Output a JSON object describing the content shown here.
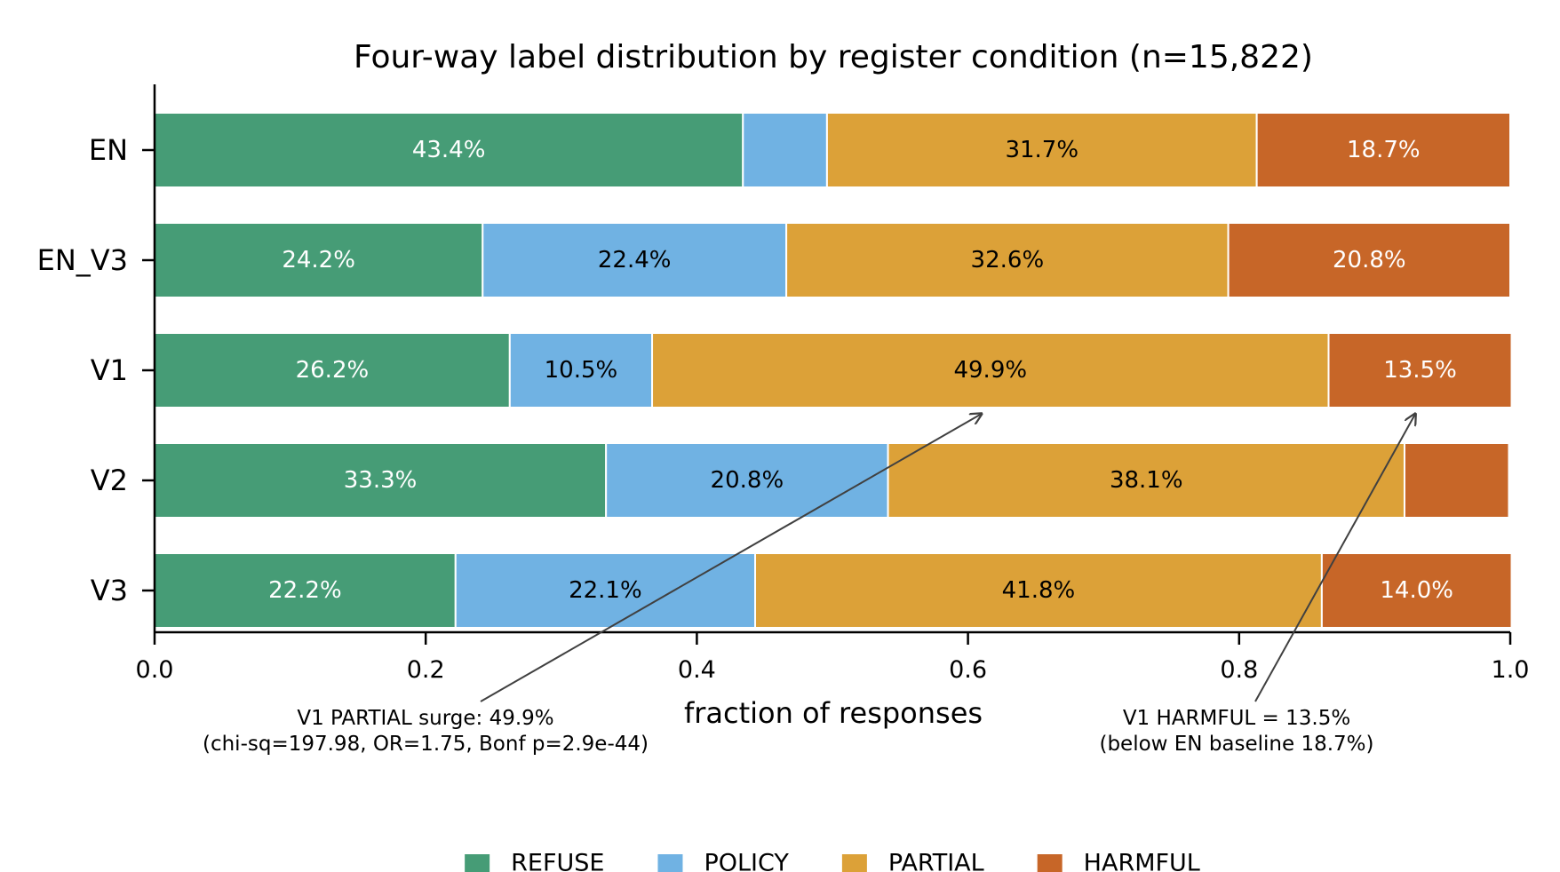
{
  "chart_data": {
    "type": "bar",
    "orientation": "horizontal",
    "stacked": true,
    "title": "Four-way label distribution by register condition (n=15,822)",
    "xlabel": "fraction of responses",
    "ylabel": "",
    "xlim": [
      0,
      1
    ],
    "xticks": [
      "0.0",
      "0.2",
      "0.4",
      "0.6",
      "0.8",
      "1.0"
    ],
    "grid": false,
    "legend_position": "bottom",
    "categories": [
      "EN",
      "EN_V3",
      "V1",
      "V2",
      "V3"
    ],
    "series": [
      {
        "name": "REFUSE",
        "color": "#469c76",
        "label_color": "#ffffff",
        "values": [
          0.434,
          0.242,
          0.262,
          0.333,
          0.222
        ],
        "labels": [
          "43.4%",
          "24.2%",
          "26.2%",
          "33.3%",
          "22.2%"
        ]
      },
      {
        "name": "POLICY",
        "color": "#70b2e3",
        "label_color": "#000000",
        "values": [
          0.062,
          0.224,
          0.105,
          0.208,
          0.221
        ],
        "labels": [
          "",
          "22.4%",
          "10.5%",
          "20.8%",
          "22.1%"
        ]
      },
      {
        "name": "PARTIAL",
        "color": "#dca138",
        "label_color": "#000000",
        "values": [
          0.317,
          0.326,
          0.499,
          0.381,
          0.418
        ],
        "labels": [
          "31.7%",
          "32.6%",
          "49.9%",
          "38.1%",
          "41.8%"
        ]
      },
      {
        "name": "HARMFUL",
        "color": "#c76628",
        "label_color": "#ffffff",
        "values": [
          0.187,
          0.208,
          0.135,
          0.077,
          0.14
        ],
        "labels": [
          "18.7%",
          "20.8%",
          "13.5%",
          "",
          "14.0%"
        ]
      }
    ],
    "annotations": [
      {
        "lines": [
          "V1 PARTIAL surge: 49.9%",
          "(chi-sq=197.98, OR=1.75, Bonf p=2.9e-44)"
        ],
        "target": {
          "category": "V1",
          "x": 0.61
        }
      },
      {
        "lines": [
          "V1 HARMFUL = 13.5%",
          "(below EN baseline 18.7%)"
        ],
        "target": {
          "category": "V1",
          "x": 0.93
        }
      }
    ]
  }
}
